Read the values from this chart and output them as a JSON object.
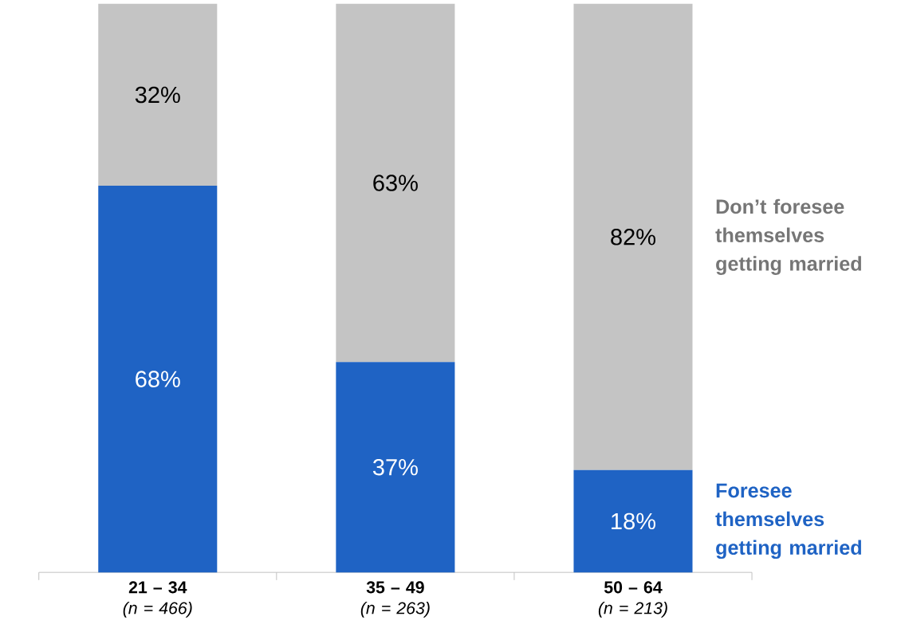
{
  "chart_data": {
    "type": "bar",
    "stacked": true,
    "categories": [
      "**21 – 34** *(n = 466)*",
      "**35 – 49** *(n = 263)*",
      "**50 – 64** *(n = 213)*"
    ],
    "series": [
      {
        "name": "Foresee themselves getting married",
        "color": "#1f63c4",
        "values": [
          68,
          37,
          18
        ],
        "value_labels": [
          "68%",
          "37%",
          "18%"
        ]
      },
      {
        "name": "Don’t foresee themselves getting married",
        "color": "#c4c4c4",
        "values": [
          32,
          63,
          82
        ],
        "value_labels": [
          "32%",
          "63%",
          "82%"
        ]
      }
    ],
    "ylim": [
      0,
      100
    ]
  }
}
